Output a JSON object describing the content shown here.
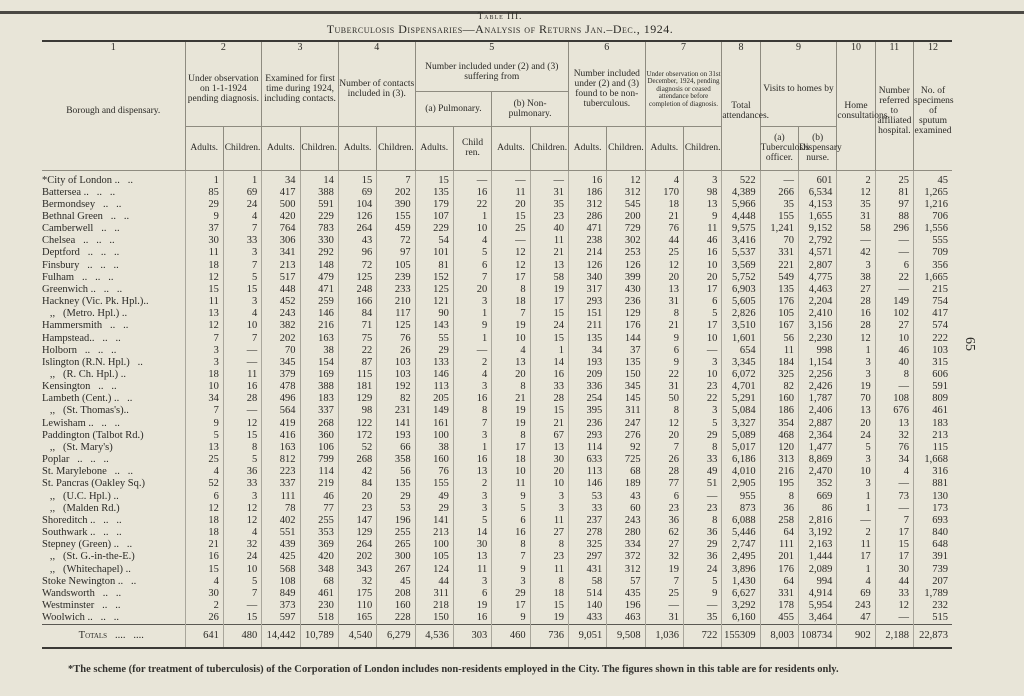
{
  "table_number": "Table III.",
  "title": "Tuberculosis Dispensaries—Analysis of Returns Jan.–Dec., 1924.",
  "page_number": "65",
  "columns": {
    "numbers": [
      "1",
      "2",
      "3",
      "4",
      "5",
      "6",
      "7",
      "8",
      "9",
      "10",
      "11",
      "12"
    ],
    "c1": "Borough and dispensary.",
    "c2": "Under observation on 1-1-1924 pending diagnosis.",
    "c3": "Examined for first time during 1924, including contacts.",
    "c4": "Number of contacts included in (3).",
    "c5": "Number included under (2) and (3) suffering from",
    "c5a": "(a) Pulmonary.",
    "c5b": "(b) Non-pulmonary.",
    "c6": "Number included under (2) and (3) found to be non-tuberculous.",
    "c7": "Under observation on 31st December, 1924, pending diagnosis or ceased attendance before completion of diagnosis.",
    "c8": "Total attendances.",
    "c9": "Visits to homes by",
    "c9a": "(a) Tuberculosis officer.",
    "c9b": "(b) Dispensary nurse.",
    "c10": "Home consultations.",
    "c11": "Number referred to affiliated hospital.",
    "c12": "No. of specimens of sputum examined",
    "adults": "Adults.",
    "children": "Children.",
    "child_alt": "Child ren."
  },
  "rows": [
    [
      "*City of London ..   ..",
      "1",
      "1",
      "34",
      "14",
      "15",
      "7",
      "15",
      "—",
      "—",
      "—",
      "16",
      "12",
      "4",
      "3",
      "522",
      "—",
      "601",
      "2",
      "25",
      "45"
    ],
    [
      "Battersea ..   ..   ..",
      "85",
      "69",
      "417",
      "388",
      "69",
      "202",
      "135",
      "16",
      "11",
      "31",
      "186",
      "312",
      "170",
      "98",
      "4,389",
      "266",
      "6,534",
      "12",
      "81",
      "1,265"
    ],
    [
      "Bermondsey   ..   ..",
      "29",
      "24",
      "500",
      "591",
      "104",
      "390",
      "179",
      "22",
      "20",
      "35",
      "312",
      "545",
      "18",
      "13",
      "5,966",
      "35",
      "4,153",
      "35",
      "97",
      "1,216"
    ],
    [
      "Bethnal Green   ..   ..",
      "9",
      "4",
      "420",
      "229",
      "126",
      "155",
      "107",
      "1",
      "15",
      "23",
      "286",
      "200",
      "21",
      "9",
      "4,448",
      "155",
      "1,655",
      "31",
      "88",
      "706"
    ],
    [
      "Camberwell   ..   ..",
      "37",
      "7",
      "764",
      "783",
      "264",
      "459",
      "229",
      "10",
      "25",
      "40",
      "471",
      "729",
      "76",
      "11",
      "9,575",
      "1,241",
      "9,152",
      "58",
      "296",
      "1,556"
    ],
    [
      "Chelsea   ..   ..   ..",
      "30",
      "33",
      "306",
      "330",
      "43",
      "72",
      "54",
      "4",
      "—",
      "11",
      "238",
      "302",
      "44",
      "46",
      "3,416",
      "70",
      "2,792",
      "—",
      "—",
      "555"
    ],
    [
      "Deptford   ..   ..   ..",
      "11",
      "3",
      "341",
      "292",
      "96",
      "97",
      "101",
      "5",
      "12",
      "21",
      "214",
      "253",
      "25",
      "16",
      "5,537",
      "331",
      "4,571",
      "42",
      "—",
      "709"
    ],
    [
      "Finsbury   ..   ..   ..",
      "18",
      "7",
      "213",
      "148",
      "72",
      "105",
      "81",
      "6",
      "12",
      "13",
      "126",
      "126",
      "12",
      "10",
      "3,569",
      "221",
      "2,807",
      "3",
      "6",
      "356"
    ],
    [
      "Fulham   ..   ..   ..",
      "12",
      "5",
      "517",
      "479",
      "125",
      "239",
      "152",
      "7",
      "17",
      "58",
      "340",
      "399",
      "20",
      "20",
      "5,752",
      "549",
      "4,775",
      "38",
      "22",
      "1,665"
    ],
    [
      "Greenwich ..   ..   ..",
      "15",
      "15",
      "448",
      "471",
      "248",
      "233",
      "125",
      "20",
      "8",
      "19",
      "317",
      "430",
      "13",
      "17",
      "6,903",
      "135",
      "4,463",
      "27",
      "—",
      "215"
    ],
    [
      "Hackney (Vic. Pk. Hpl.)..",
      "11",
      "3",
      "452",
      "259",
      "166",
      "210",
      "121",
      "3",
      "18",
      "17",
      "293",
      "236",
      "31",
      "6",
      "5,605",
      "176",
      "2,204",
      "28",
      "149",
      "754"
    ],
    [
      "   ,,   (Metro. Hpl.) ..",
      "13",
      "4",
      "243",
      "146",
      "84",
      "117",
      "90",
      "1",
      "7",
      "15",
      "151",
      "129",
      "8",
      "5",
      "2,826",
      "105",
      "2,410",
      "16",
      "102",
      "417"
    ],
    [
      "Hammersmith   ..   ..",
      "12",
      "10",
      "382",
      "216",
      "71",
      "125",
      "143",
      "9",
      "19",
      "24",
      "211",
      "176",
      "21",
      "17",
      "3,510",
      "167",
      "3,156",
      "28",
      "27",
      "574"
    ],
    [
      "Hampstead..   ..   ..",
      "7",
      "7",
      "202",
      "163",
      "75",
      "76",
      "55",
      "1",
      "10",
      "15",
      "135",
      "144",
      "9",
      "10",
      "1,601",
      "56",
      "2,230",
      "12",
      "10",
      "222"
    ],
    [
      "Holborn   ..   ..   ..",
      "3",
      "—",
      "70",
      "38",
      "22",
      "26",
      "29",
      "—",
      "4",
      "1",
      "34",
      "37",
      "6",
      "—",
      "654",
      "11",
      "998",
      "1",
      "46",
      "103"
    ],
    [
      "Islington (R.N. Hpl.)   ..",
      "3",
      "—",
      "345",
      "154",
      "87",
      "103",
      "133",
      "2",
      "13",
      "14",
      "193",
      "135",
      "9",
      "3",
      "3,345",
      "184",
      "1,154",
      "3",
      "40",
      "315"
    ],
    [
      "   ,,   (R. Ch. Hpl.) ..",
      "18",
      "11",
      "379",
      "169",
      "115",
      "103",
      "146",
      "4",
      "20",
      "16",
      "209",
      "150",
      "22",
      "10",
      "6,072",
      "325",
      "2,256",
      "3",
      "8",
      "606"
    ],
    [
      "Kensington   ..   ..",
      "10",
      "16",
      "478",
      "388",
      "181",
      "192",
      "113",
      "3",
      "8",
      "33",
      "336",
      "345",
      "31",
      "23",
      "4,701",
      "82",
      "2,426",
      "19",
      "—",
      "591"
    ],
    [
      "Lambeth (Cent.) ..   ..",
      "34",
      "28",
      "496",
      "183",
      "129",
      "82",
      "205",
      "16",
      "21",
      "28",
      "254",
      "145",
      "50",
      "22",
      "5,291",
      "160",
      "1,787",
      "70",
      "108",
      "809"
    ],
    [
      "   ,,   (St. Thomas's)..",
      "7",
      "—",
      "564",
      "337",
      "98",
      "231",
      "149",
      "8",
      "19",
      "15",
      "395",
      "311",
      "8",
      "3",
      "5,084",
      "186",
      "2,406",
      "13",
      "676",
      "461"
    ],
    [
      "Lewisham ..   ..   ..",
      "9",
      "12",
      "419",
      "268",
      "122",
      "141",
      "161",
      "7",
      "19",
      "21",
      "236",
      "247",
      "12",
      "5",
      "3,327",
      "354",
      "2,887",
      "20",
      "13",
      "183"
    ],
    [
      "Paddington (Talbot Rd.)",
      "5",
      "15",
      "416",
      "360",
      "172",
      "193",
      "100",
      "3",
      "8",
      "67",
      "293",
      "276",
      "20",
      "29",
      "5,089",
      "468",
      "2,364",
      "24",
      "32",
      "213"
    ],
    [
      "   ,,   (St. Mary's)",
      "13",
      "8",
      "163",
      "106",
      "52",
      "66",
      "38",
      "1",
      "17",
      "13",
      "114",
      "92",
      "7",
      "8",
      "5,017",
      "120",
      "1,477",
      "5",
      "76",
      "115"
    ],
    [
      "Poplar   ..   ..   ..",
      "25",
      "5",
      "812",
      "799",
      "268",
      "358",
      "160",
      "16",
      "18",
      "30",
      "633",
      "725",
      "26",
      "33",
      "6,186",
      "313",
      "8,869",
      "3",
      "34",
      "1,668"
    ],
    [
      "St. Marylebone   ..   ..",
      "4",
      "36",
      "223",
      "114",
      "42",
      "56",
      "76",
      "13",
      "10",
      "20",
      "113",
      "68",
      "28",
      "49",
      "4,010",
      "216",
      "2,470",
      "10",
      "4",
      "316"
    ],
    [
      "St. Pancras (Oakley Sq.)",
      "52",
      "33",
      "337",
      "219",
      "84",
      "135",
      "155",
      "2",
      "11",
      "10",
      "146",
      "189",
      "77",
      "51",
      "2,905",
      "195",
      "352",
      "3",
      "—",
      "881"
    ],
    [
      "   ,,   (U.C. Hpl.) ..",
      "6",
      "3",
      "111",
      "46",
      "20",
      "29",
      "49",
      "3",
      "9",
      "3",
      "53",
      "43",
      "6",
      "—",
      "955",
      "8",
      "669",
      "1",
      "73",
      "130"
    ],
    [
      "   ,,   (Malden Rd.)",
      "12",
      "12",
      "78",
      "77",
      "23",
      "53",
      "29",
      "3",
      "5",
      "3",
      "33",
      "60",
      "23",
      "23",
      "873",
      "36",
      "86",
      "1",
      "—",
      "173"
    ],
    [
      "Shoreditch ..   ..   ..",
      "18",
      "12",
      "402",
      "255",
      "147",
      "196",
      "141",
      "5",
      "6",
      "11",
      "237",
      "243",
      "36",
      "8",
      "6,088",
      "258",
      "2,816",
      "—",
      "7",
      "693"
    ],
    [
      "Southwark ..   ..   ..",
      "18",
      "4",
      "551",
      "353",
      "129",
      "255",
      "213",
      "14",
      "16",
      "27",
      "278",
      "280",
      "62",
      "36",
      "5,446",
      "64",
      "3,192",
      "2",
      "17",
      "840"
    ],
    [
      "Stepney (Green) ..   ..",
      "21",
      "32",
      "439",
      "369",
      "264",
      "265",
      "100",
      "30",
      "8",
      "8",
      "325",
      "334",
      "27",
      "29",
      "2,747",
      "111",
      "2,163",
      "11",
      "15",
      "648"
    ],
    [
      "   ,,   (St. G.-in-the-E.)",
      "16",
      "24",
      "425",
      "420",
      "202",
      "300",
      "105",
      "13",
      "7",
      "23",
      "297",
      "372",
      "32",
      "36",
      "2,495",
      "201",
      "1,444",
      "17",
      "17",
      "391"
    ],
    [
      "   ,,   (Whitechapel) ..",
      "15",
      "10",
      "568",
      "348",
      "343",
      "267",
      "124",
      "11",
      "9",
      "11",
      "431",
      "312",
      "19",
      "24",
      "3,896",
      "176",
      "2,089",
      "1",
      "30",
      "739"
    ],
    [
      "Stoke Newington ..   ..",
      "4",
      "5",
      "108",
      "68",
      "32",
      "45",
      "44",
      "3",
      "3",
      "8",
      "58",
      "57",
      "7",
      "5",
      "1,430",
      "64",
      "994",
      "4",
      "44",
      "207"
    ],
    [
      "Wandsworth   ..   ..",
      "30",
      "7",
      "849",
      "461",
      "175",
      "208",
      "311",
      "6",
      "29",
      "18",
      "514",
      "435",
      "25",
      "9",
      "6,627",
      "331",
      "4,914",
      "69",
      "33",
      "1,789"
    ],
    [
      "Westminster   ..   ..",
      "2",
      "—",
      "373",
      "230",
      "110",
      "160",
      "218",
      "19",
      "17",
      "15",
      "140",
      "196",
      "—",
      "—",
      "3,292",
      "178",
      "5,954",
      "243",
      "12",
      "232"
    ],
    [
      "Woolwich ..   ..   ..",
      "26",
      "15",
      "597",
      "518",
      "165",
      "228",
      "150",
      "16",
      "9",
      "19",
      "433",
      "463",
      "31",
      "35",
      "6,160",
      "455",
      "3,464",
      "47",
      "—",
      "515"
    ]
  ],
  "totals": [
    "Totals   ....   ....",
    "641",
    "480",
    "14,442",
    "10,789",
    "4,540",
    "6,279",
    "4,536",
    "303",
    "460",
    "736",
    "9,051",
    "9,508",
    "1,036",
    "722",
    "155309",
    "8,003",
    "108734",
    "902",
    "2,188",
    "22,873"
  ],
  "footnote": "*The scheme (for treatment of tuberculosis) of the Corporation of London includes non-residents employed in the City. The figures shown in this table are for residents only."
}
